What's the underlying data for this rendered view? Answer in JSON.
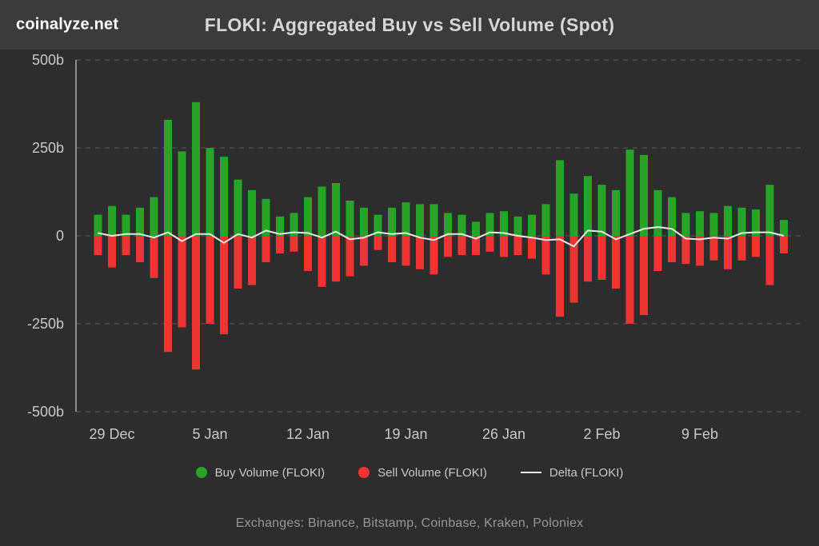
{
  "header": {
    "brand": "coinalyze.net",
    "title": "FLOKI: Aggregated Buy vs Sell Volume (Spot)"
  },
  "legend": {
    "items": [
      {
        "label": "Buy Volume (FLOKI)",
        "color": "#27a427",
        "type": "dot"
      },
      {
        "label": "Sell Volume (FLOKI)",
        "color": "#f03333",
        "type": "dot"
      },
      {
        "label": "Delta (FLOKI)",
        "color": "#e8e8e8",
        "type": "line"
      }
    ]
  },
  "footer": {
    "text": "Exchanges: Binance, Bitstamp, Coinbase, Kraken, Poloniex"
  },
  "colors": {
    "background": "#2d2d2d",
    "header_background": "#3b3b3b",
    "grid": "#575757",
    "axis": "#8d8d8d",
    "text": "#c9c9c9",
    "buy": "#27a427",
    "sell": "#f03333",
    "delta": "#e8e8e8"
  },
  "chart_data": {
    "type": "bar",
    "title": "FLOKI: Aggregated Buy vs Sell Volume (Spot)",
    "unit": "billions",
    "grid": true,
    "legend_position": "bottom",
    "ylim": [
      -500,
      500
    ],
    "y_ticks": [
      {
        "value": 500,
        "label": "500b"
      },
      {
        "value": 250,
        "label": "250b"
      },
      {
        "value": 0,
        "label": "0"
      },
      {
        "value": -250,
        "label": "-250b"
      },
      {
        "value": -500,
        "label": "-500b"
      }
    ],
    "x_ticks": [
      {
        "index": 1,
        "label": "29 Dec"
      },
      {
        "index": 8,
        "label": "5 Jan"
      },
      {
        "index": 15,
        "label": "12 Jan"
      },
      {
        "index": 22,
        "label": "19 Jan"
      },
      {
        "index": 29,
        "label": "26 Jan"
      },
      {
        "index": 36,
        "label": "2 Feb"
      },
      {
        "index": 43,
        "label": "9 Feb"
      }
    ],
    "series": [
      {
        "name": "Buy Volume (FLOKI)",
        "type": "bar",
        "color": "#27a427",
        "values": [
          60,
          85,
          60,
          80,
          110,
          330,
          240,
          380,
          250,
          225,
          160,
          130,
          105,
          55,
          65,
          110,
          140,
          150,
          100,
          80,
          60,
          80,
          95,
          90,
          90,
          65,
          60,
          40,
          65,
          70,
          55,
          60,
          90,
          215,
          120,
          170,
          145,
          130,
          245,
          230,
          130,
          110,
          65,
          70,
          65,
          85,
          80,
          75,
          145,
          45
        ]
      },
      {
        "name": "Sell Volume (FLOKI)",
        "type": "bar",
        "color": "#f03333",
        "values": [
          -55,
          -90,
          -55,
          -75,
          -120,
          -330,
          -260,
          -380,
          -250,
          -280,
          -150,
          -140,
          -75,
          -50,
          -45,
          -100,
          -145,
          -130,
          -115,
          -85,
          -40,
          -75,
          -85,
          -95,
          -110,
          -60,
          -55,
          -55,
          -45,
          -60,
          -55,
          -65,
          -110,
          -230,
          -190,
          -130,
          -125,
          -150,
          -250,
          -225,
          -100,
          -75,
          -80,
          -85,
          -70,
          -95,
          -70,
          -60,
          -140,
          -50
        ]
      },
      {
        "name": "Delta (FLOKI)",
        "type": "line",
        "color": "#e8e8e8",
        "values": [
          8,
          0,
          5,
          5,
          -5,
          10,
          -15,
          5,
          5,
          -20,
          5,
          -5,
          15,
          5,
          10,
          8,
          -5,
          12,
          -10,
          -5,
          10,
          5,
          8,
          -5,
          -12,
          5,
          5,
          -8,
          10,
          8,
          0,
          -5,
          -12,
          -10,
          -30,
          15,
          12,
          -10,
          5,
          20,
          25,
          20,
          -8,
          -10,
          -5,
          -8,
          8,
          10,
          10,
          0
        ]
      }
    ]
  }
}
